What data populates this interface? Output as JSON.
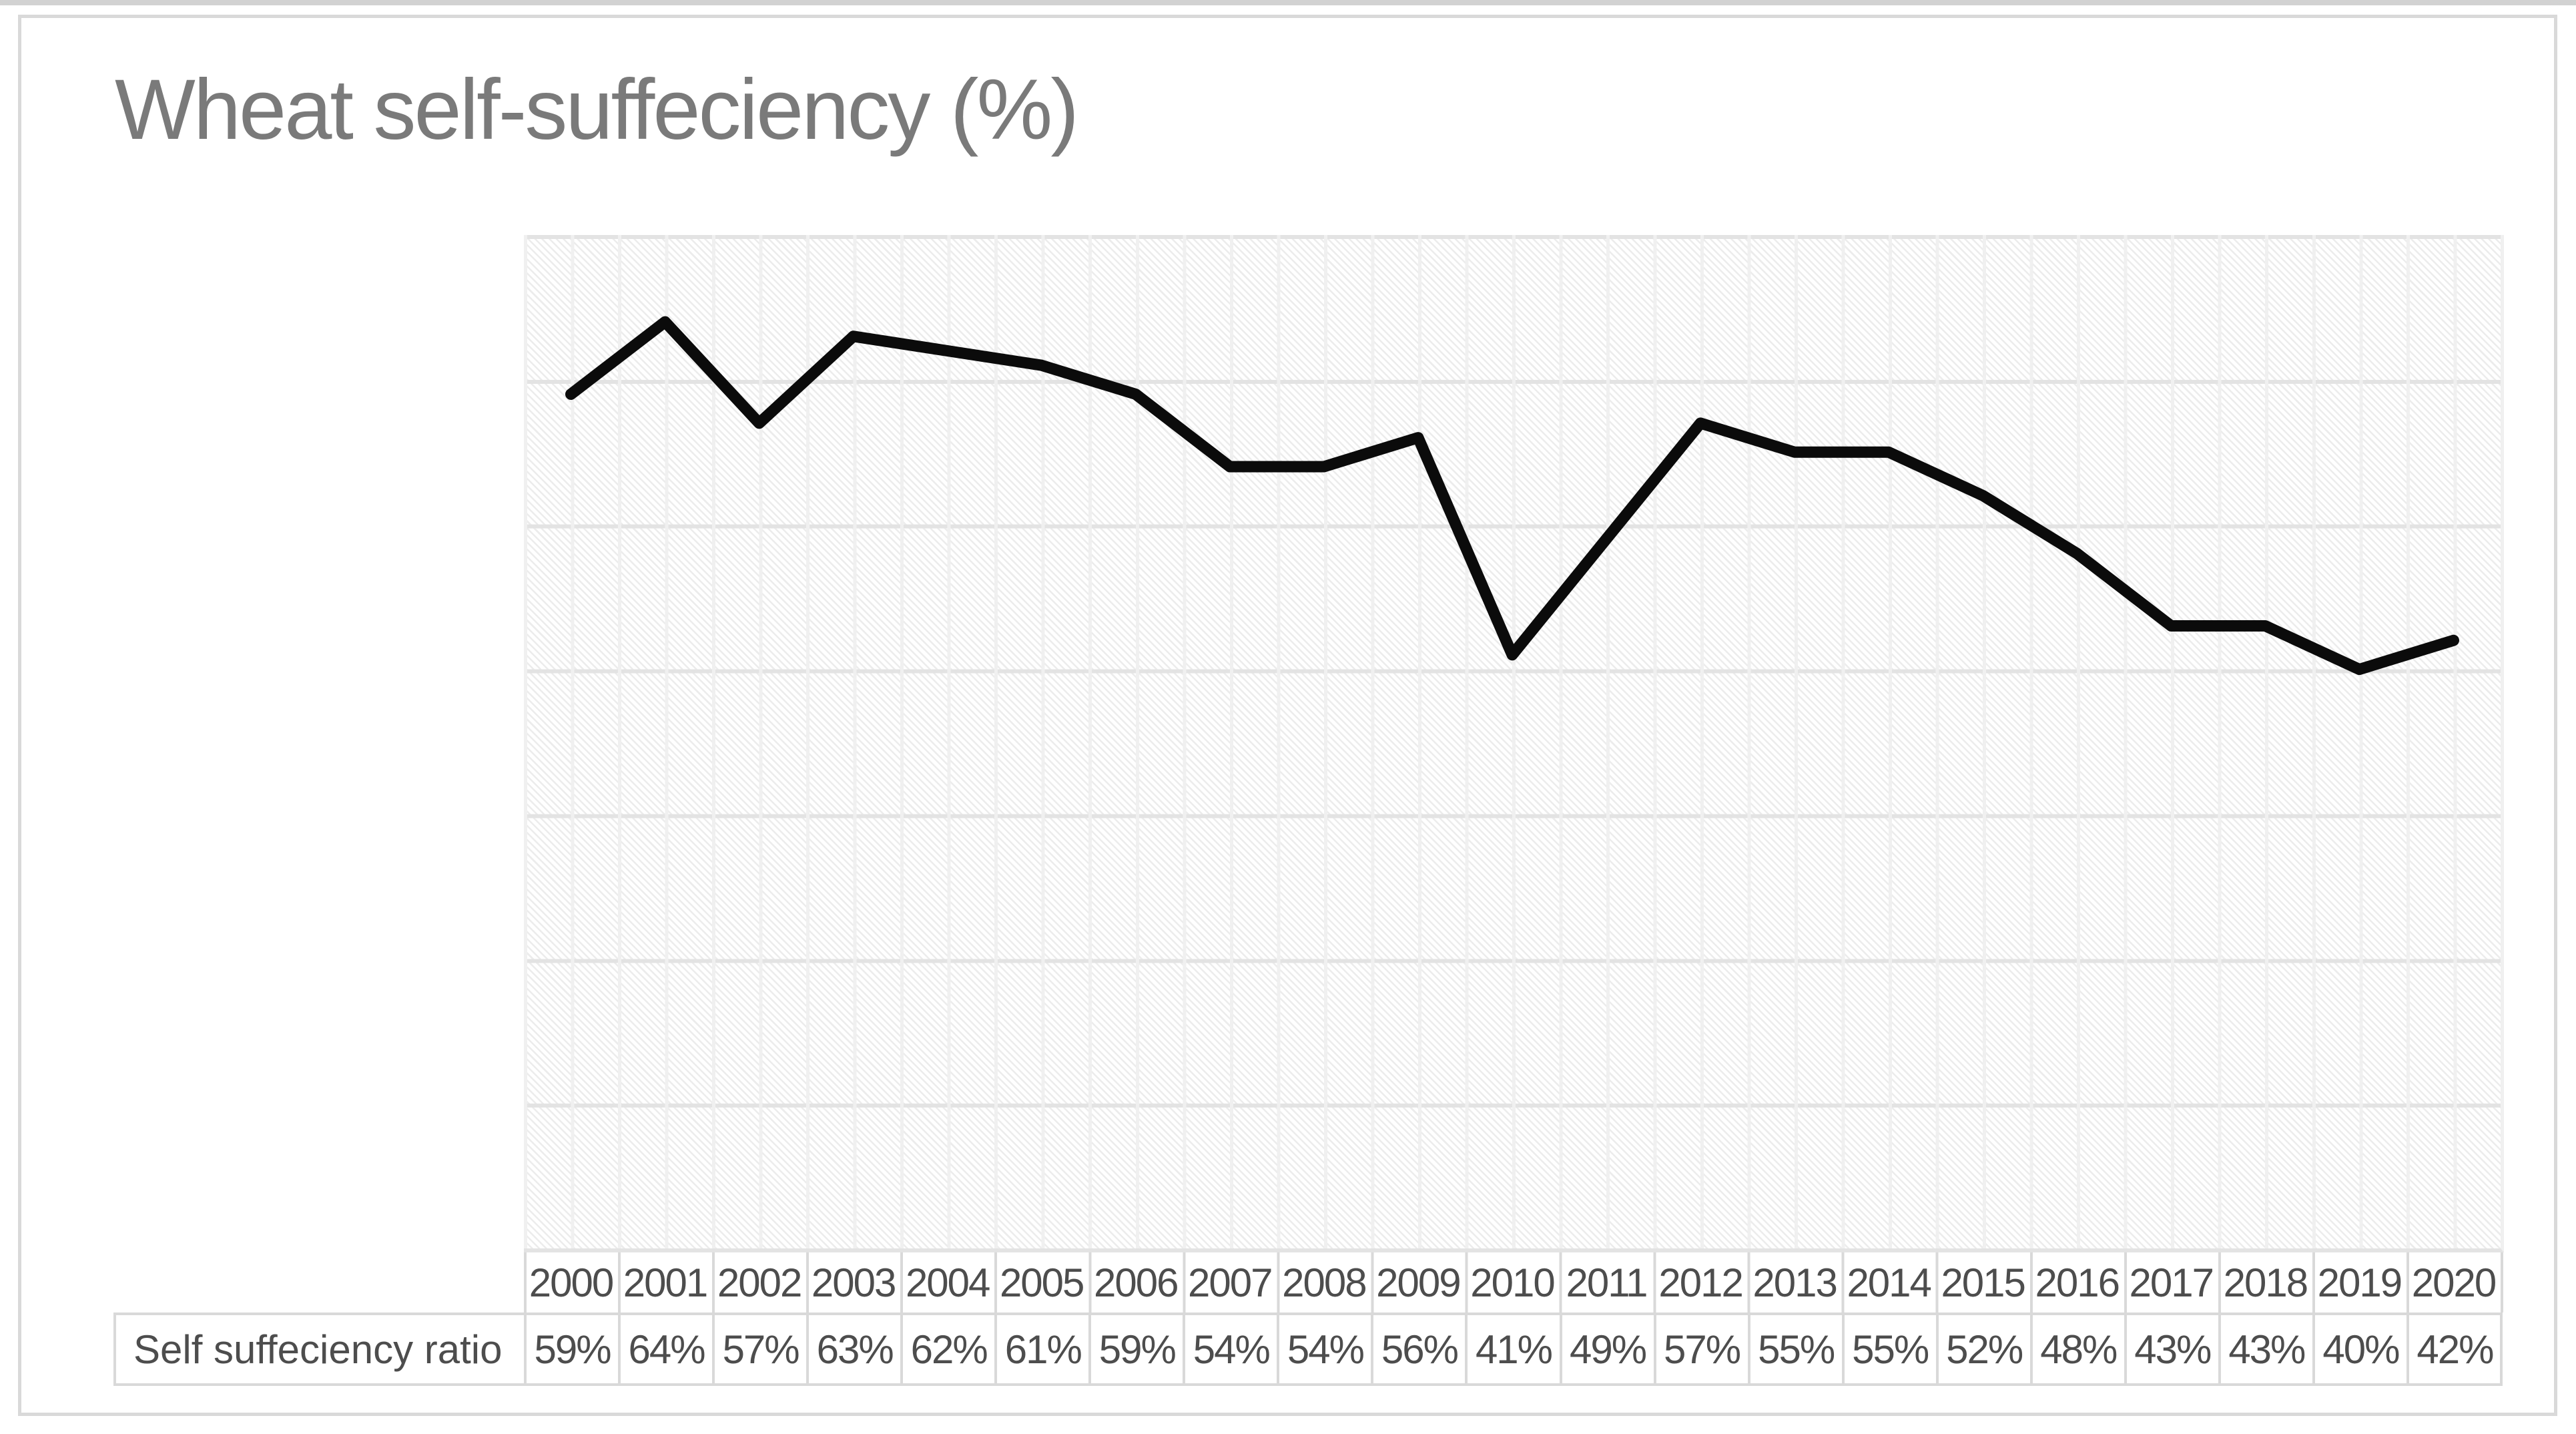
{
  "chart_data": {
    "type": "line",
    "title": "Wheat self-suffeciency (%)",
    "categories": [
      "2000",
      "2001",
      "2002",
      "2003",
      "2004",
      "2005",
      "2006",
      "2007",
      "2008",
      "2009",
      "2010",
      "2011",
      "2012",
      "2013",
      "2014",
      "2015",
      "2016",
      "2017",
      "2018",
      "2019",
      "2020"
    ],
    "series": [
      {
        "name": "Self suffeciency ratio",
        "values": [
          59,
          64,
          57,
          63,
          62,
          61,
          59,
          54,
          54,
          56,
          41,
          49,
          57,
          55,
          55,
          52,
          48,
          43,
          43,
          40,
          42
        ],
        "labels": [
          "59%",
          "64%",
          "57%",
          "63%",
          "62%",
          "61%",
          "59%",
          "54%",
          "54%",
          "56%",
          "41%",
          "49%",
          "57%",
          "55%",
          "55%",
          "52%",
          "48%",
          "43%",
          "43%",
          "40%",
          "42%"
        ]
      }
    ],
    "ylim": [
      0,
      70
    ],
    "y_gridline_step": 10,
    "y_axis_labels_visible": false,
    "x_minor_gridlines": true,
    "legend": "none",
    "data_table_visible": true,
    "plot_fill_pattern": "light-diagonal-hatch"
  },
  "colors": {
    "series_line": "#0b0b0b",
    "title_text": "#7a7a7a",
    "axis_text": "#4d4d4d",
    "table_border": "#d9d9d9",
    "gridline_vertical": "#f0f0f0",
    "gridline_horizontal": "#e3e3e3",
    "hatch": "#ececec",
    "frame_border": "#d9d9d9"
  }
}
